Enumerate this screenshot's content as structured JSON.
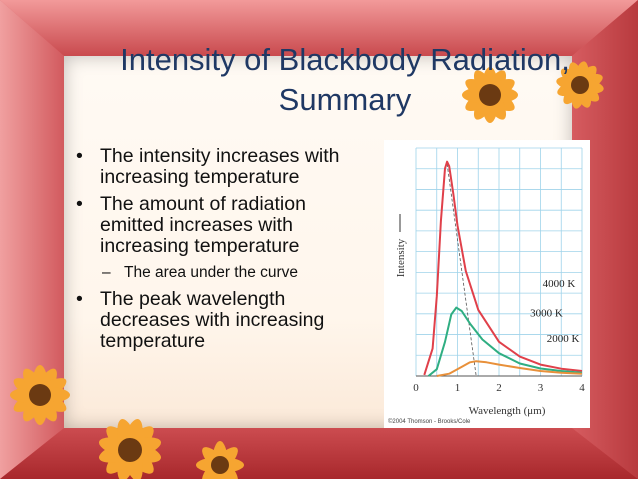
{
  "slide": {
    "title_line1": "Intensity of Blackbody Radiation,",
    "title_line2": "Summary",
    "bullets": [
      {
        "text": "The intensity increases with increasing temperature",
        "level": 1
      },
      {
        "text": "The amount of radiation emitted increases with increasing temperature",
        "level": 1
      },
      {
        "text": "The area under the curve",
        "level": 2
      },
      {
        "text": "The peak wavelength decreases with increasing temperature",
        "level": 1
      }
    ]
  },
  "chart_data": {
    "type": "line",
    "xlabel": "Wavelength (μm)",
    "ylabel": "Intensity",
    "xlim": [
      0,
      4
    ],
    "ylim": [
      0,
      10
    ],
    "x_ticks": [
      "0",
      "1",
      "2",
      "3",
      "4"
    ],
    "series": [
      {
        "name": "4000 K",
        "color": "#e0404a",
        "x": [
          0.2,
          0.4,
          0.5,
          0.6,
          0.7,
          0.75,
          0.8,
          0.9,
          1.0,
          1.2,
          1.5,
          2.0,
          2.5,
          3.0,
          3.5,
          4.0
        ],
        "y": [
          0.05,
          1.2,
          3.5,
          6.8,
          9.1,
          9.4,
          9.2,
          8.0,
          6.6,
          4.6,
          2.9,
          1.5,
          0.85,
          0.5,
          0.32,
          0.22
        ]
      },
      {
        "name": "3000 K",
        "color": "#2fae82",
        "x": [
          0.3,
          0.5,
          0.7,
          0.85,
          0.97,
          1.1,
          1.3,
          1.6,
          2.0,
          2.5,
          3.0,
          3.5,
          4.0
        ],
        "y": [
          0.0,
          0.3,
          1.5,
          2.7,
          3.0,
          2.85,
          2.3,
          1.6,
          1.0,
          0.55,
          0.33,
          0.22,
          0.14
        ]
      },
      {
        "name": "2000 K",
        "color": "#e8903a",
        "x": [
          0.5,
          0.8,
          1.1,
          1.3,
          1.45,
          1.7,
          2.0,
          2.5,
          3.0,
          3.5,
          4.0
        ],
        "y": [
          0.0,
          0.1,
          0.4,
          0.6,
          0.65,
          0.6,
          0.5,
          0.35,
          0.22,
          0.14,
          0.1
        ]
      }
    ],
    "peak_wavelengths_um": [
      0.75,
      0.97,
      1.45
    ],
    "credit": "©2004 Thomson - Brooks/Cole"
  }
}
